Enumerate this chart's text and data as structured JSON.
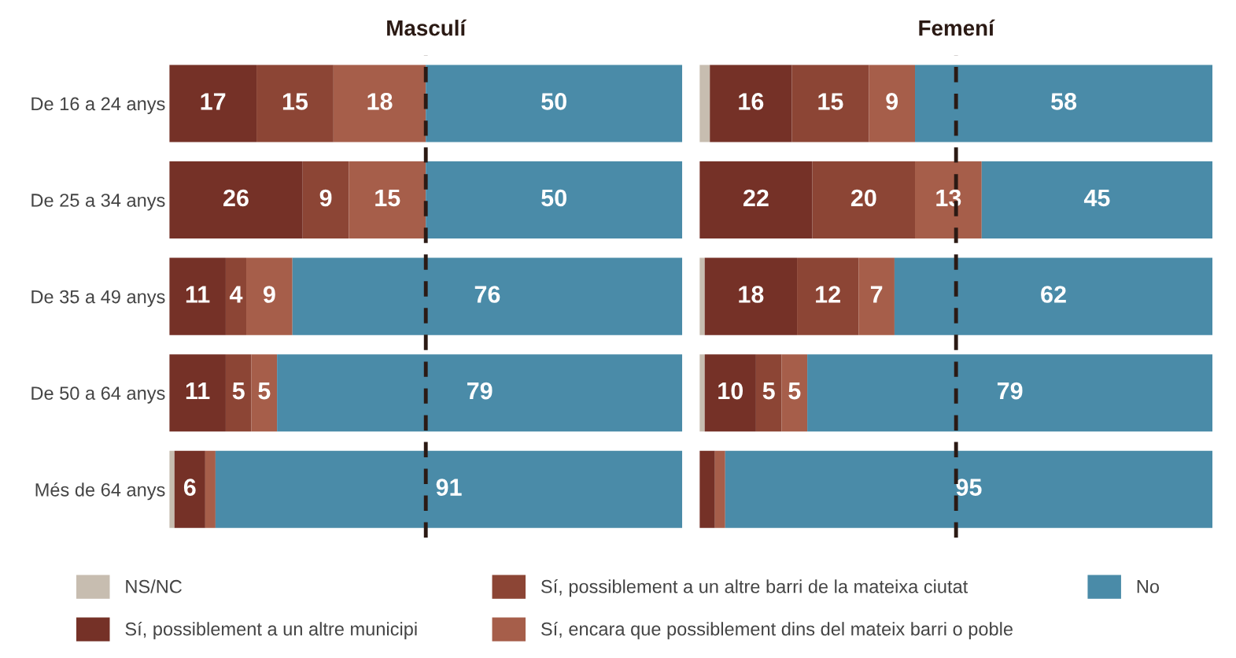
{
  "chart_data": [
    {
      "type": "bar",
      "title": "Masculí",
      "orientation": "horizontal",
      "stacked": true,
      "xlim": [
        0,
        100
      ],
      "tick_labels": "y",
      "legend": "bottom",
      "grid": false,
      "categories": [
        "De 16 a 24 anys",
        "De 25 a 34 anys",
        "De 35 a 49 anys",
        "De 50 a 64 anys",
        "Més de 64 anys"
      ],
      "ref_lines": [
        {
          "axis": "x",
          "value": 50,
          "color": "#2b1a14",
          "line_style": "dashed"
        }
      ],
      "series": [
        {
          "name": "NS/NC",
          "color": "#c7bdb0",
          "values": [
            0,
            0,
            0,
            0,
            1
          ],
          "value_labels": [
            null,
            null,
            null,
            null,
            null
          ]
        },
        {
          "name": "Sí, possiblement a un altre municipi",
          "color": "#753127",
          "values": [
            17,
            26,
            11,
            11,
            6
          ],
          "value_labels": [
            "17",
            "26",
            "11",
            "11",
            "6"
          ]
        },
        {
          "name": "Sí, possiblement a un altre barri de la mateixa ciutat",
          "color": "#8c4535",
          "values": [
            15,
            9,
            4,
            5,
            0
          ],
          "value_labels": [
            "15",
            "9",
            "4",
            "5",
            null
          ]
        },
        {
          "name": "Sí, encara que possiblement dins del mateix barri o poble",
          "color": "#a65e4a",
          "values": [
            18,
            15,
            9,
            5,
            2
          ],
          "value_labels": [
            "18",
            "15",
            "9",
            "5",
            null
          ]
        },
        {
          "name": "No",
          "color": "#4a8ba8",
          "values": [
            50,
            50,
            76,
            79,
            91
          ],
          "value_labels": [
            "50",
            "50",
            "76",
            "79",
            "91"
          ]
        }
      ]
    },
    {
      "type": "bar",
      "title": "Femení",
      "orientation": "horizontal",
      "stacked": true,
      "xlim": [
        0,
        100
      ],
      "tick_labels": false,
      "grid": false,
      "categories": [
        null,
        null,
        null,
        null,
        null
      ],
      "ref_lines": [
        {
          "axis": "x",
          "value": 50,
          "color": "#2b1a14",
          "line_style": "dashed"
        }
      ],
      "series": [
        {
          "color": "#c7bdb0",
          "values": [
            2,
            0,
            1,
            1,
            0
          ],
          "value_labels": [
            null,
            null,
            null,
            null,
            null
          ]
        },
        {
          "color": "#753127",
          "values": [
            16,
            22,
            18,
            10,
            3
          ],
          "value_labels": [
            "16",
            "22",
            "18",
            "10",
            null
          ]
        },
        {
          "color": "#8c4535",
          "values": [
            15,
            20,
            12,
            5,
            0
          ],
          "value_labels": [
            "15",
            "20",
            "12",
            "5",
            null
          ]
        },
        {
          "color": "#a65e4a",
          "values": [
            9,
            13,
            7,
            5,
            2
          ],
          "value_labels": [
            "9",
            "13",
            "7",
            "5",
            null
          ]
        },
        {
          "color": "#4a8ba8",
          "values": [
            58,
            45,
            62,
            79,
            95
          ],
          "value_labels": [
            "58",
            "45",
            "62",
            "79",
            "95"
          ]
        }
      ]
    }
  ]
}
